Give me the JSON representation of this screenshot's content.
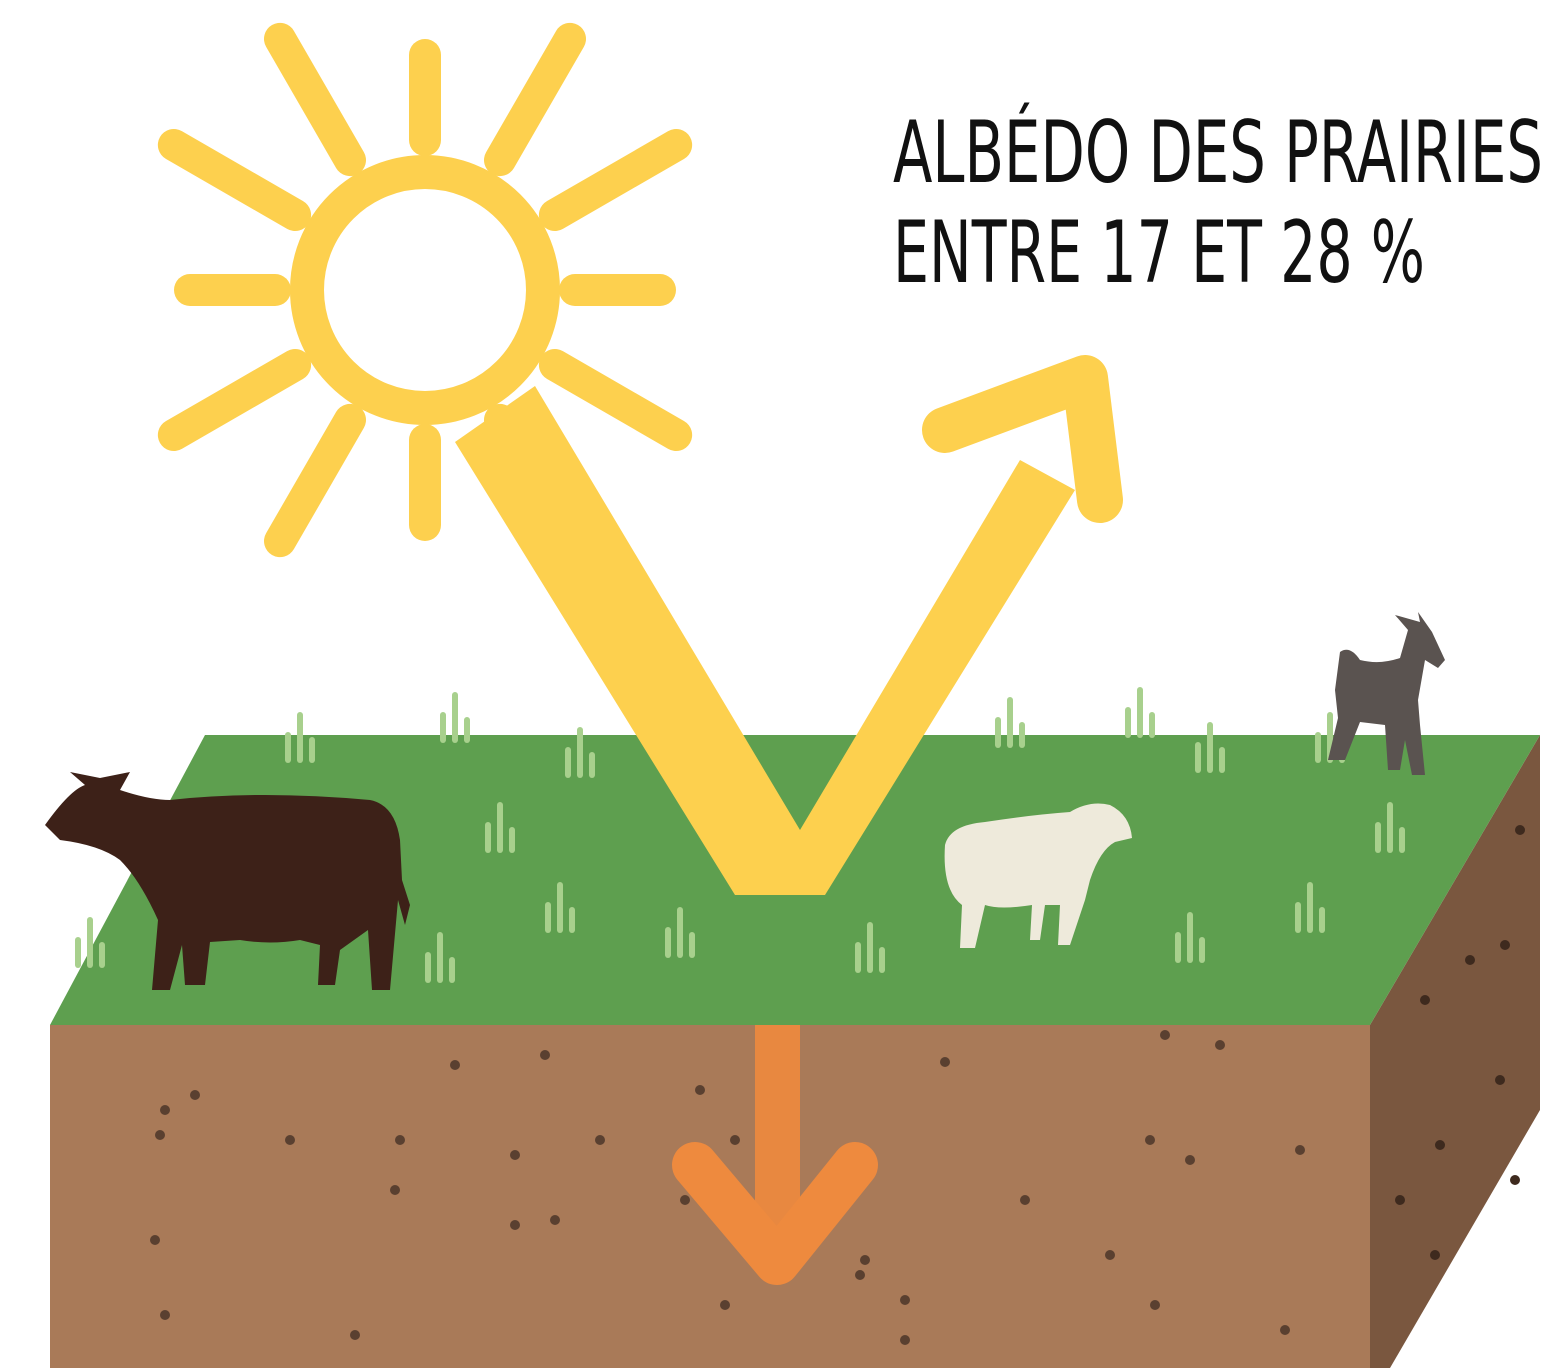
{
  "title": {
    "lines": [
      "ALBÉDO DES PRAIRIES",
      "ENTRE 17 ET 28 %"
    ]
  }
}
